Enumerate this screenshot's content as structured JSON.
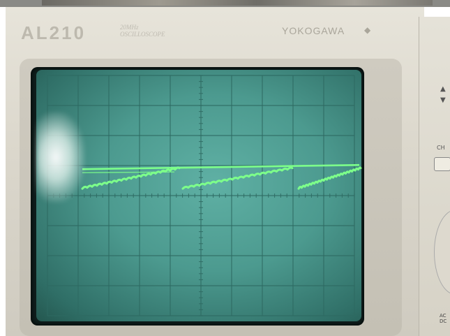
{
  "device": {
    "model_label": "AL210",
    "subtitle_label": "20MHz OSCILLOSCOPE",
    "maker_label": "YOKOGAWA",
    "maker_icon": "diamond-icon",
    "side_panel": {
      "up_arrow_icon": "up-triangle-icon",
      "down_arrow_icon": "down-triangle-icon",
      "partial_label": "CH",
      "bottom_labels": [
        "AC",
        "DC"
      ]
    }
  },
  "display": {
    "grid": {
      "divisions_x": 10,
      "divisions_y": 8,
      "minor_ticks_per_division": 5
    },
    "colors": {
      "screen": "#4c9a8f",
      "grid": "#2e6a62",
      "trace": "#7dff8a",
      "glare": "#ffffff"
    },
    "trace_description_values": {
      "flat_level_div": 1.35,
      "ramp_start_div": 0.3,
      "segments_per_ramp": 5,
      "ramp_periods": 3
    }
  }
}
